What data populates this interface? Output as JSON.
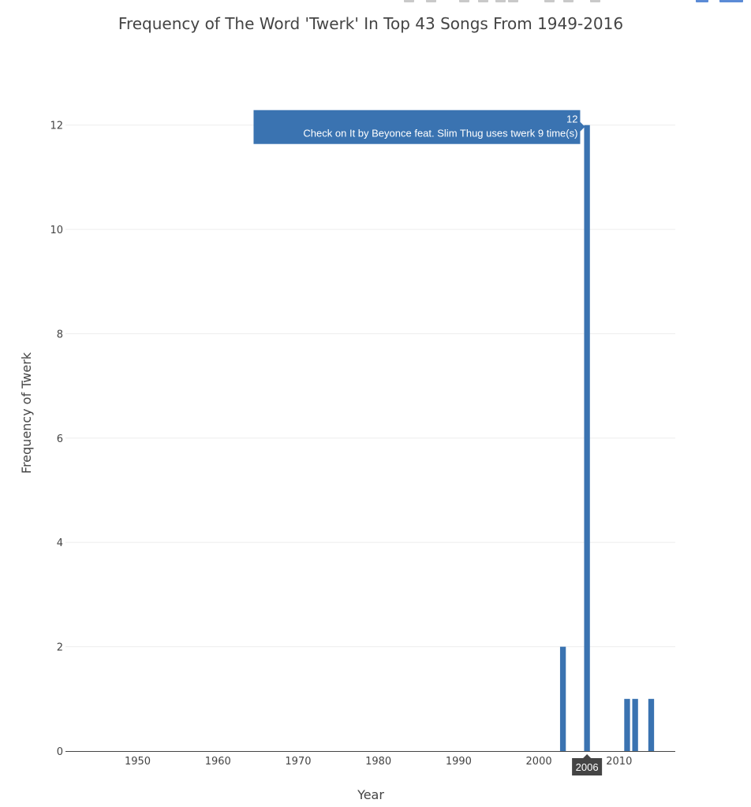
{
  "modebar": {
    "icons": [
      "camera-icon",
      "save-icon",
      "zoom-icon",
      "pan-icon",
      "box-select-icon",
      "lasso-icon",
      "zoom-in-icon",
      "zoom-out-icon",
      "autoscale-icon",
      "reset-axes-icon",
      "spike-lines-icon",
      "hover-closest-icon",
      "hover-compare-icon",
      "plotly-logo-icon"
    ]
  },
  "chart_data": {
    "type": "bar",
    "title": "Frequency of The Word 'Twerk' In Top 43 Songs From 1949-2016",
    "xlabel": "Year",
    "ylabel": "Frequency of Twerk",
    "x_ticks": [
      1950,
      1960,
      1970,
      1980,
      1990,
      2000,
      2010
    ],
    "y_ticks": [
      0,
      2,
      4,
      6,
      8,
      10,
      12
    ],
    "xlim": [
      1941,
      2017
    ],
    "ylim": [
      0,
      12.6
    ],
    "grid": true,
    "bar_color": "#3a73b1",
    "series": [
      {
        "x": [
          2003,
          2006,
          2011,
          2012,
          2014
        ],
        "y": [
          2,
          12,
          1,
          1,
          1
        ]
      }
    ],
    "hover": {
      "x": 2006,
      "value_label": "12",
      "text": "Check on It by Beyonce feat. Slim Thug uses twerk 9 time(s)",
      "x_label": "2006"
    }
  }
}
